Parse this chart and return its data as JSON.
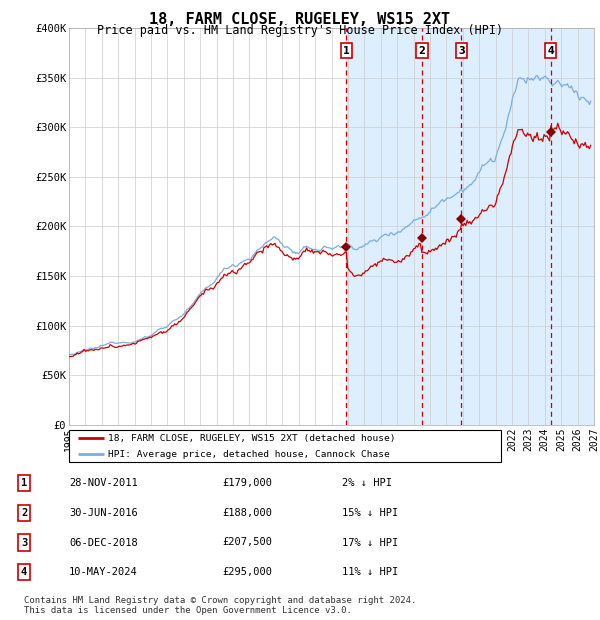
{
  "title": "18, FARM CLOSE, RUGELEY, WS15 2XT",
  "subtitle": "Price paid vs. HM Land Registry's House Price Index (HPI)",
  "ylim": [
    0,
    400000
  ],
  "yticks": [
    0,
    50000,
    100000,
    150000,
    200000,
    250000,
    300000,
    350000,
    400000
  ],
  "ytick_labels": [
    "£0",
    "£50K",
    "£100K",
    "£150K",
    "£200K",
    "£250K",
    "£300K",
    "£350K",
    "£400K"
  ],
  "xlim_start": 1995.0,
  "xlim_end": 2027.0,
  "grid_color": "#cccccc",
  "shade_color": "#ddeeff",
  "hpi_color": "#7aade0",
  "price_color": "#cc0000",
  "sale_marker_color": "#880000",
  "vline_color": "#cc0000",
  "sale_dates": [
    2011.91,
    2016.5,
    2018.92,
    2024.36
  ],
  "sale_prices": [
    179000,
    188000,
    207500,
    295000
  ],
  "sale_labels": [
    "1",
    "2",
    "3",
    "4"
  ],
  "hatch_start": 2024.5,
  "table_entries": [
    {
      "label": "1",
      "date": "28-NOV-2011",
      "price": "£179,000",
      "hpi": "2% ↓ HPI"
    },
    {
      "label": "2",
      "date": "30-JUN-2016",
      "price": "£188,000",
      "hpi": "15% ↓ HPI"
    },
    {
      "label": "3",
      "date": "06-DEC-2018",
      "price": "£207,500",
      "hpi": "17% ↓ HPI"
    },
    {
      "label": "4",
      "date": "10-MAY-2024",
      "price": "£295,000",
      "hpi": "11% ↓ HPI"
    }
  ],
  "legend_entries": [
    "18, FARM CLOSE, RUGELEY, WS15 2XT (detached house)",
    "HPI: Average price, detached house, Cannock Chase"
  ],
  "footer": "Contains HM Land Registry data © Crown copyright and database right 2024.\nThis data is licensed under the Open Government Licence v3.0."
}
